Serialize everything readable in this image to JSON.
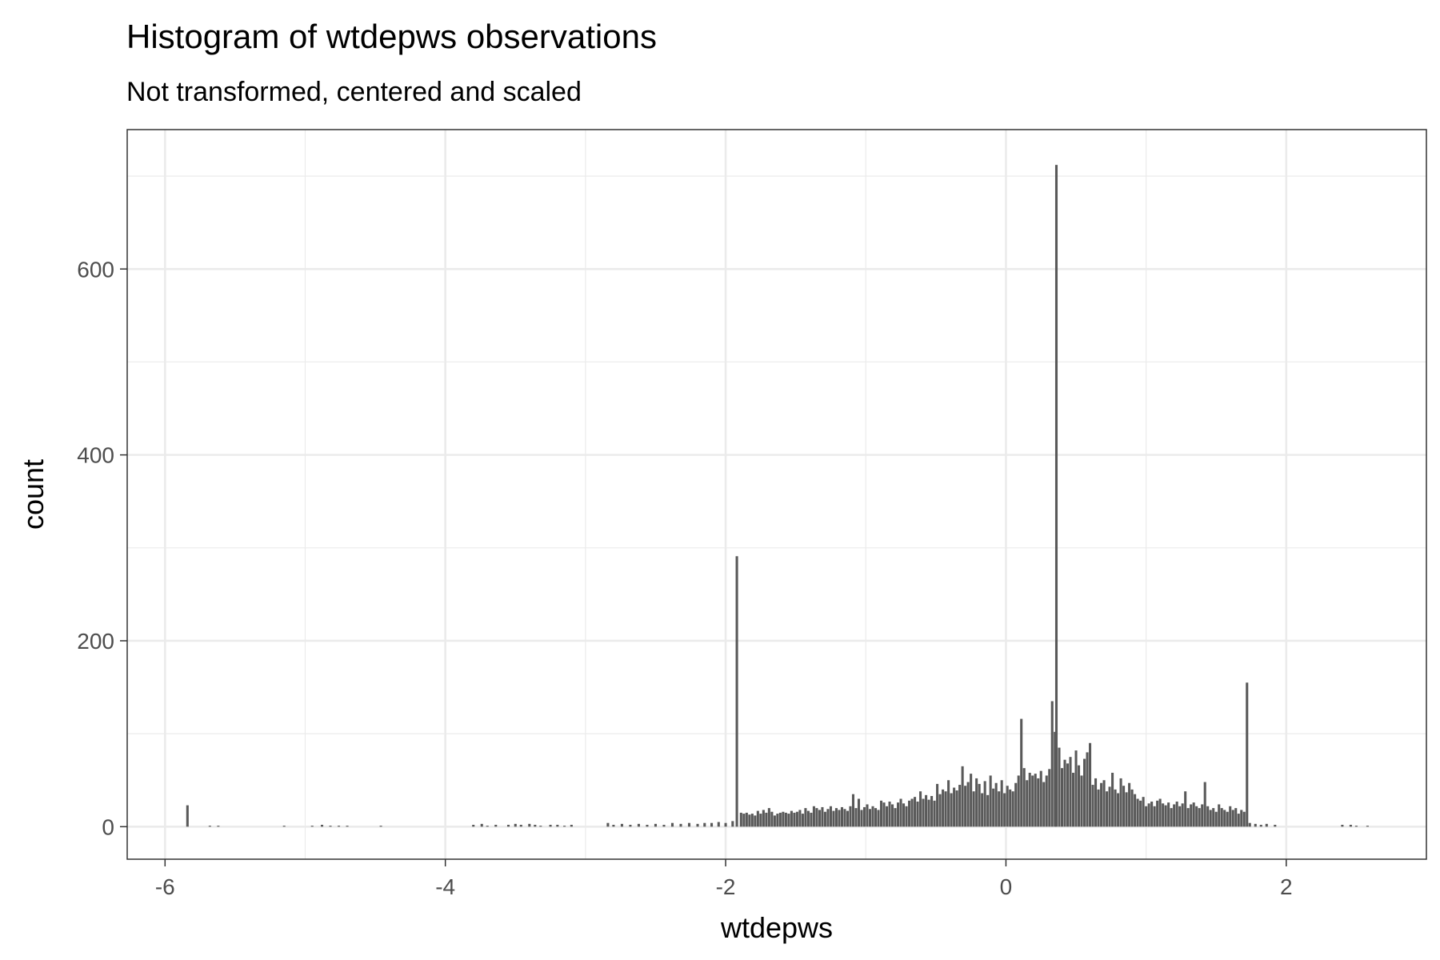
{
  "chart_data": {
    "type": "bar",
    "title": "Histogram of wtdepws observations",
    "subtitle": "Not transformed, centered and scaled",
    "xlabel": "wtdepws",
    "ylabel": "count",
    "xlim": [
      -6.27,
      3.0
    ],
    "ylim": [
      -35,
      750
    ],
    "x_ticks": [
      -6,
      -4,
      -2,
      0,
      2
    ],
    "x_tick_labels": [
      "-6",
      "-4",
      "-2",
      "0",
      "2"
    ],
    "y_ticks": [
      0,
      200,
      400,
      600
    ],
    "y_tick_labels": [
      "0",
      "200",
      "400",
      "600"
    ],
    "bin_width": 0.0175,
    "bar_color": "#595959",
    "grid": true,
    "legend": "none",
    "bins": [
      [
        -5.84,
        23
      ],
      [
        -5.68,
        1
      ],
      [
        -5.62,
        1
      ],
      [
        -5.15,
        1
      ],
      [
        -4.95,
        1
      ],
      [
        -4.88,
        2
      ],
      [
        -4.82,
        1
      ],
      [
        -4.76,
        1
      ],
      [
        -4.7,
        1
      ],
      [
        -4.46,
        1
      ],
      [
        -3.8,
        2
      ],
      [
        -3.74,
        3
      ],
      [
        -3.7,
        1
      ],
      [
        -3.64,
        2
      ],
      [
        -3.55,
        2
      ],
      [
        -3.5,
        3
      ],
      [
        -3.46,
        2
      ],
      [
        -3.4,
        3
      ],
      [
        -3.36,
        2
      ],
      [
        -3.32,
        1
      ],
      [
        -3.25,
        2
      ],
      [
        -3.2,
        2
      ],
      [
        -3.15,
        1
      ],
      [
        -3.1,
        2
      ],
      [
        -2.84,
        4
      ],
      [
        -2.8,
        2
      ],
      [
        -2.74,
        3
      ],
      [
        -2.68,
        2
      ],
      [
        -2.62,
        3
      ],
      [
        -2.56,
        2
      ],
      [
        -2.5,
        3
      ],
      [
        -2.44,
        2
      ],
      [
        -2.38,
        4
      ],
      [
        -2.32,
        3
      ],
      [
        -2.26,
        4
      ],
      [
        -2.2,
        3
      ],
      [
        -2.15,
        4
      ],
      [
        -2.1,
        4
      ],
      [
        -2.05,
        5
      ],
      [
        -2.0,
        4
      ],
      [
        -1.95,
        6
      ],
      [
        -1.92,
        291
      ],
      [
        -1.89,
        15
      ],
      [
        -1.87,
        14
      ],
      [
        -1.85,
        15
      ],
      [
        -1.83,
        13
      ],
      [
        -1.81,
        14
      ],
      [
        -1.79,
        12
      ],
      [
        -1.77,
        17
      ],
      [
        -1.75,
        14
      ],
      [
        -1.73,
        18
      ],
      [
        -1.71,
        15
      ],
      [
        -1.69,
        20
      ],
      [
        -1.67,
        16
      ],
      [
        -1.65,
        12
      ],
      [
        -1.63,
        14
      ],
      [
        -1.61,
        15
      ],
      [
        -1.59,
        16
      ],
      [
        -1.57,
        15
      ],
      [
        -1.55,
        14
      ],
      [
        -1.53,
        17
      ],
      [
        -1.51,
        15
      ],
      [
        -1.49,
        16
      ],
      [
        -1.47,
        18
      ],
      [
        -1.45,
        14
      ],
      [
        -1.43,
        20
      ],
      [
        -1.41,
        17
      ],
      [
        -1.39,
        15
      ],
      [
        -1.37,
        22
      ],
      [
        -1.35,
        20
      ],
      [
        -1.33,
        18
      ],
      [
        -1.31,
        21
      ],
      [
        -1.29,
        16
      ],
      [
        -1.27,
        19
      ],
      [
        -1.25,
        22
      ],
      [
        -1.23,
        17
      ],
      [
        -1.21,
        20
      ],
      [
        -1.19,
        18
      ],
      [
        -1.17,
        21
      ],
      [
        -1.15,
        19
      ],
      [
        -1.13,
        17
      ],
      [
        -1.11,
        22
      ],
      [
        -1.09,
        35
      ],
      [
        -1.07,
        20
      ],
      [
        -1.05,
        30
      ],
      [
        -1.03,
        18
      ],
      [
        -1.01,
        21
      ],
      [
        -0.99,
        24
      ],
      [
        -0.97,
        19
      ],
      [
        -0.95,
        22
      ],
      [
        -0.93,
        20
      ],
      [
        -0.91,
        18
      ],
      [
        -0.89,
        28
      ],
      [
        -0.87,
        26
      ],
      [
        -0.85,
        22
      ],
      [
        -0.83,
        27
      ],
      [
        -0.81,
        24
      ],
      [
        -0.79,
        20
      ],
      [
        -0.77,
        26
      ],
      [
        -0.75,
        30
      ],
      [
        -0.73,
        25
      ],
      [
        -0.71,
        22
      ],
      [
        -0.69,
        28
      ],
      [
        -0.67,
        30
      ],
      [
        -0.65,
        32
      ],
      [
        -0.63,
        27
      ],
      [
        -0.61,
        38
      ],
      [
        -0.59,
        30
      ],
      [
        -0.57,
        34
      ],
      [
        -0.55,
        29
      ],
      [
        -0.53,
        33
      ],
      [
        -0.51,
        28
      ],
      [
        -0.49,
        46
      ],
      [
        -0.47,
        35
      ],
      [
        -0.45,
        40
      ],
      [
        -0.43,
        38
      ],
      [
        -0.41,
        50
      ],
      [
        -0.39,
        36
      ],
      [
        -0.37,
        42
      ],
      [
        -0.35,
        39
      ],
      [
        -0.33,
        45
      ],
      [
        -0.31,
        65
      ],
      [
        -0.29,
        44
      ],
      [
        -0.27,
        48
      ],
      [
        -0.25,
        57
      ],
      [
        -0.23,
        38
      ],
      [
        -0.21,
        52
      ],
      [
        -0.19,
        46
      ],
      [
        -0.17,
        36
      ],
      [
        -0.15,
        49
      ],
      [
        -0.13,
        34
      ],
      [
        -0.11,
        55
      ],
      [
        -0.09,
        41
      ],
      [
        -0.07,
        47
      ],
      [
        -0.05,
        38
      ],
      [
        -0.03,
        50
      ],
      [
        -0.01,
        36
      ],
      [
        0.01,
        44
      ],
      [
        0.03,
        40
      ],
      [
        0.05,
        38
      ],
      [
        0.07,
        47
      ],
      [
        0.09,
        55
      ],
      [
        0.11,
        116
      ],
      [
        0.13,
        63
      ],
      [
        0.15,
        50
      ],
      [
        0.17,
        58
      ],
      [
        0.19,
        55
      ],
      [
        0.21,
        57
      ],
      [
        0.23,
        52
      ],
      [
        0.25,
        60
      ],
      [
        0.27,
        48
      ],
      [
        0.29,
        55
      ],
      [
        0.31,
        62
      ],
      [
        0.33,
        135
      ],
      [
        0.35,
        102
      ],
      [
        0.36,
        712
      ],
      [
        0.38,
        85
      ],
      [
        0.4,
        63
      ],
      [
        0.42,
        72
      ],
      [
        0.44,
        68
      ],
      [
        0.46,
        75
      ],
      [
        0.48,
        58
      ],
      [
        0.5,
        82
      ],
      [
        0.52,
        66
      ],
      [
        0.54,
        55
      ],
      [
        0.56,
        73
      ],
      [
        0.58,
        80
      ],
      [
        0.6,
        90
      ],
      [
        0.62,
        45
      ],
      [
        0.64,
        52
      ],
      [
        0.66,
        40
      ],
      [
        0.68,
        47
      ],
      [
        0.7,
        50
      ],
      [
        0.72,
        38
      ],
      [
        0.74,
        43
      ],
      [
        0.76,
        58
      ],
      [
        0.78,
        40
      ],
      [
        0.8,
        36
      ],
      [
        0.82,
        52
      ],
      [
        0.84,
        44
      ],
      [
        0.86,
        37
      ],
      [
        0.88,
        47
      ],
      [
        0.9,
        40
      ],
      [
        0.92,
        35
      ],
      [
        0.94,
        30
      ],
      [
        0.96,
        28
      ],
      [
        0.98,
        32
      ],
      [
        1.0,
        22
      ],
      [
        1.02,
        25
      ],
      [
        1.04,
        27
      ],
      [
        1.06,
        22
      ],
      [
        1.08,
        28
      ],
      [
        1.1,
        30
      ],
      [
        1.12,
        25
      ],
      [
        1.14,
        23
      ],
      [
        1.16,
        26
      ],
      [
        1.18,
        20
      ],
      [
        1.2,
        24
      ],
      [
        1.22,
        27
      ],
      [
        1.24,
        22
      ],
      [
        1.26,
        25
      ],
      [
        1.28,
        38
      ],
      [
        1.3,
        20
      ],
      [
        1.32,
        24
      ],
      [
        1.34,
        26
      ],
      [
        1.36,
        22
      ],
      [
        1.38,
        20
      ],
      [
        1.4,
        24
      ],
      [
        1.42,
        48
      ],
      [
        1.44,
        22
      ],
      [
        1.46,
        18
      ],
      [
        1.48,
        20
      ],
      [
        1.5,
        16
      ],
      [
        1.52,
        24
      ],
      [
        1.54,
        20
      ],
      [
        1.56,
        18
      ],
      [
        1.58,
        16
      ],
      [
        1.6,
        22
      ],
      [
        1.62,
        18
      ],
      [
        1.64,
        20
      ],
      [
        1.66,
        14
      ],
      [
        1.68,
        18
      ],
      [
        1.7,
        16
      ],
      [
        1.72,
        155
      ],
      [
        1.74,
        4
      ],
      [
        1.78,
        3
      ],
      [
        1.82,
        2
      ],
      [
        1.86,
        3
      ],
      [
        1.92,
        2
      ],
      [
        2.4,
        2
      ],
      [
        2.46,
        2
      ],
      [
        2.5,
        1
      ],
      [
        2.58,
        1
      ]
    ]
  }
}
